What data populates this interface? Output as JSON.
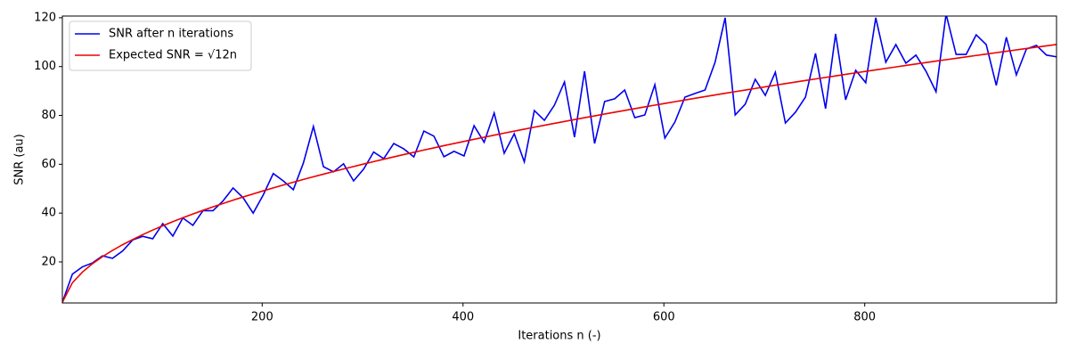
{
  "chart_data": {
    "type": "line",
    "x_label": "Iterations n (-)",
    "y_label": "SNR (au)",
    "x": [
      1,
      11,
      21,
      31,
      41,
      51,
      61,
      71,
      81,
      91,
      101,
      111,
      121,
      131,
      141,
      151,
      161,
      171,
      181,
      191,
      201,
      211,
      221,
      231,
      241,
      251,
      261,
      271,
      281,
      291,
      301,
      311,
      321,
      331,
      341,
      351,
      361,
      371,
      381,
      391,
      401,
      411,
      421,
      431,
      441,
      451,
      461,
      471,
      481,
      491,
      501,
      511,
      521,
      531,
      541,
      551,
      561,
      571,
      581,
      591,
      601,
      611,
      621,
      631,
      641,
      651,
      661,
      671,
      681,
      691,
      701,
      711,
      721,
      731,
      741,
      751,
      761,
      771,
      781,
      791,
      801,
      811,
      821,
      831,
      841,
      851,
      861,
      871,
      881,
      891,
      901,
      911,
      921,
      931,
      941,
      951,
      961,
      971,
      981,
      991
    ],
    "series": [
      {
        "name": "SNR after n iterations",
        "color": "#0000ee",
        "values": [
          3.5,
          15,
          18,
          19.6,
          22.5,
          21.5,
          24.5,
          29,
          30.5,
          29.5,
          35.7,
          30.6,
          38,
          35,
          41,
          41,
          45,
          50.3,
          46.3,
          40,
          47.4,
          56.2,
          53.2,
          49.6,
          60.5,
          75.5,
          59,
          56.9,
          60.2,
          53.2,
          58,
          65,
          62.3,
          68.5,
          66.3,
          63,
          73.6,
          71.5,
          63.1,
          65.3,
          63.4,
          75.8,
          69,
          81,
          64.5,
          72.5,
          61,
          82,
          78,
          84.2,
          93.7,
          71.1,
          98.1,
          68.5,
          85.7,
          86.8,
          90.4,
          79.1,
          80.2,
          92.6,
          70.7,
          77.3,
          87.5,
          89,
          90.4,
          101.8,
          120,
          80.2,
          84.6,
          94.8,
          88.2,
          97.7,
          76.9,
          81.3,
          87.5,
          105.4,
          82.8,
          113.4,
          86.4,
          98.5,
          93.4,
          120,
          101.8,
          109,
          101.4,
          104.7,
          98.1,
          89.7,
          121.5,
          105,
          105,
          113,
          109,
          92.3,
          112,
          96.6,
          107.2,
          108.7,
          104.7,
          104
        ]
      },
      {
        "name": "Expected SNR = √12n",
        "color": "#ee0000",
        "values": [
          3.46,
          11.49,
          15.87,
          19.29,
          22.18,
          24.74,
          27.06,
          29.19,
          31.18,
          33.05,
          34.81,
          36.5,
          38.11,
          39.65,
          41.13,
          42.57,
          43.95,
          45.3,
          46.6,
          47.87,
          49.11,
          50.32,
          51.5,
          52.65,
          53.78,
          54.88,
          55.96,
          57.03,
          58.07,
          59.09,
          60.1,
          61.09,
          62.06,
          63.02,
          63.97,
          64.9,
          65.82,
          66.72,
          67.62,
          68.5,
          69.37,
          70.23,
          71.08,
          71.92,
          72.75,
          73.57,
          74.38,
          75.18,
          75.97,
          76.76,
          77.54,
          78.31,
          79.07,
          79.82,
          80.57,
          81.31,
          82.05,
          82.78,
          83.5,
          84.21,
          84.92,
          85.63,
          86.32,
          87.02,
          87.7,
          88.39,
          89.06,
          89.73,
          90.4,
          91.06,
          91.72,
          92.37,
          93.02,
          93.66,
          94.3,
          94.93,
          95.56,
          96.19,
          96.81,
          97.43,
          98.04,
          98.65,
          99.26,
          99.86,
          100.46,
          101.06,
          101.65,
          102.24,
          102.82,
          103.4,
          103.98,
          104.55,
          105.13,
          105.7,
          106.26,
          106.83,
          107.39,
          107.94,
          108.5,
          109.05
        ]
      }
    ],
    "xlim": [
      1,
      991
    ],
    "ylim": [
      3.2,
      120.7
    ],
    "xticks": [
      200,
      400,
      600,
      800
    ],
    "yticks": [
      20,
      40,
      60,
      80,
      100,
      120
    ],
    "legend": "upper left"
  }
}
